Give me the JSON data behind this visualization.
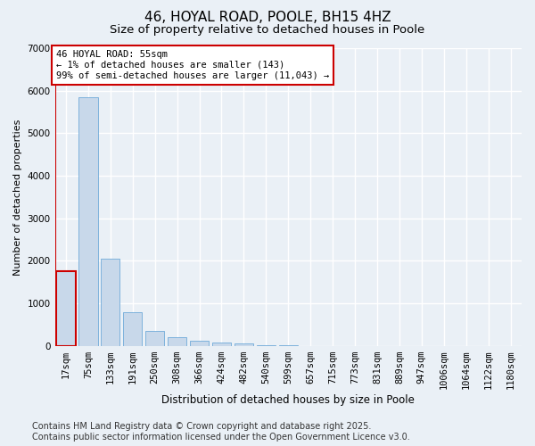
{
  "title1": "46, HOYAL ROAD, POOLE, BH15 4HZ",
  "title2": "Size of property relative to detached houses in Poole",
  "xlabel": "Distribution of detached houses by size in Poole",
  "ylabel": "Number of detached properties",
  "categories": [
    "17sqm",
    "75sqm",
    "133sqm",
    "191sqm",
    "250sqm",
    "308sqm",
    "366sqm",
    "424sqm",
    "482sqm",
    "540sqm",
    "599sqm",
    "657sqm",
    "715sqm",
    "773sqm",
    "831sqm",
    "889sqm",
    "947sqm",
    "1006sqm",
    "1064sqm",
    "1122sqm",
    "1180sqm"
  ],
  "values": [
    1750,
    5850,
    2050,
    800,
    350,
    210,
    120,
    80,
    50,
    25,
    10,
    5,
    3,
    0,
    0,
    0,
    0,
    0,
    0,
    0,
    0
  ],
  "bar_color": "#c8d8ea",
  "bar_edge_color": "#5a9fd4",
  "bar_linewidth": 0.5,
  "highlight_bar_index": 0,
  "highlight_edge_color": "#cc0000",
  "highlight_linewidth": 1.5,
  "vline_color": "#cc0000",
  "vline_linewidth": 1.5,
  "annotation_text": "46 HOYAL ROAD: 55sqm\n← 1% of detached houses are smaller (143)\n99% of semi-detached houses are larger (11,043) →",
  "annotation_box_color": "#ffffff",
  "annotation_box_edge": "#cc0000",
  "annotation_fontsize": 7.5,
  "ylim": [
    0,
    7000
  ],
  "yticks": [
    0,
    1000,
    2000,
    3000,
    4000,
    5000,
    6000,
    7000
  ],
  "footer_text": "Contains HM Land Registry data © Crown copyright and database right 2025.\nContains public sector information licensed under the Open Government Licence v3.0.",
  "bg_color": "#eaf0f6",
  "grid_color": "#ffffff",
  "title_fontsize": 11,
  "subtitle_fontsize": 9.5,
  "axis_label_fontsize": 8.5,
  "tick_fontsize": 7.5,
  "ylabel_fontsize": 8,
  "footer_fontsize": 7
}
